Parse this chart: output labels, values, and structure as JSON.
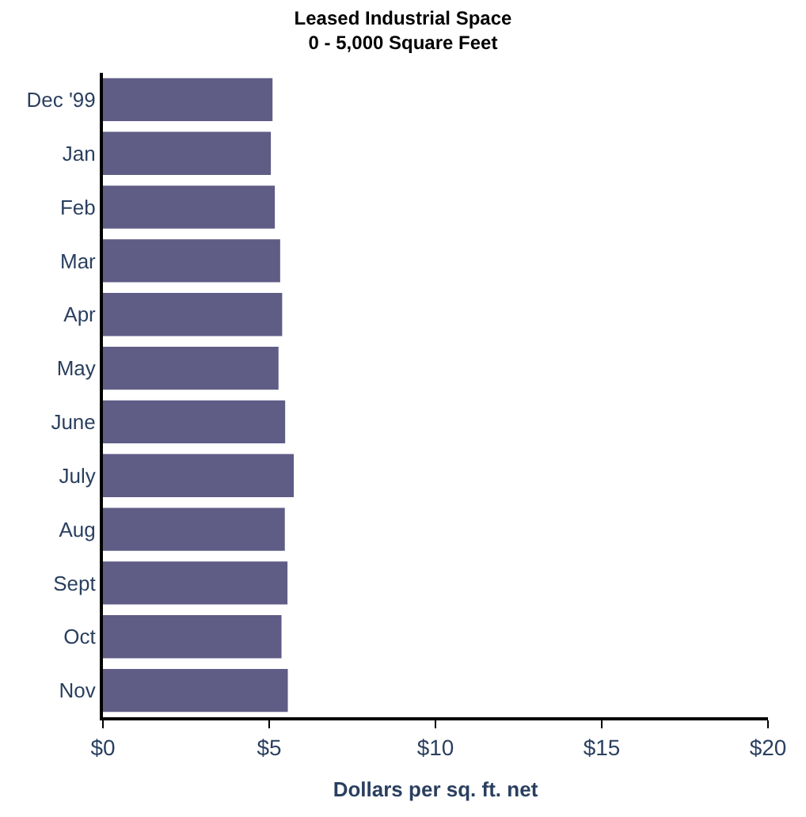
{
  "chart_data": {
    "type": "bar",
    "orientation": "horizontal",
    "title": "Leased Industrial Space\n0 - 5,000 Square Feet",
    "xlabel": "Dollars per sq. ft. net",
    "categories": [
      "Dec '99",
      "Jan",
      "Feb",
      "Mar",
      "Apr",
      "May",
      "June",
      "July",
      "Aug",
      "Sept",
      "Oct",
      "Nov"
    ],
    "values": [
      5.1,
      5.05,
      5.17,
      5.33,
      5.39,
      5.28,
      5.48,
      5.74,
      5.47,
      5.55,
      5.37,
      5.56
    ],
    "color": "#5f5c86",
    "xlim": [
      0,
      20
    ],
    "xticks": [
      {
        "value": 0,
        "label": "$0"
      },
      {
        "value": 5,
        "label": "$5"
      },
      {
        "value": 10,
        "label": "$10"
      },
      {
        "value": 15,
        "label": "$15"
      },
      {
        "value": 20,
        "label": "$20"
      }
    ]
  }
}
